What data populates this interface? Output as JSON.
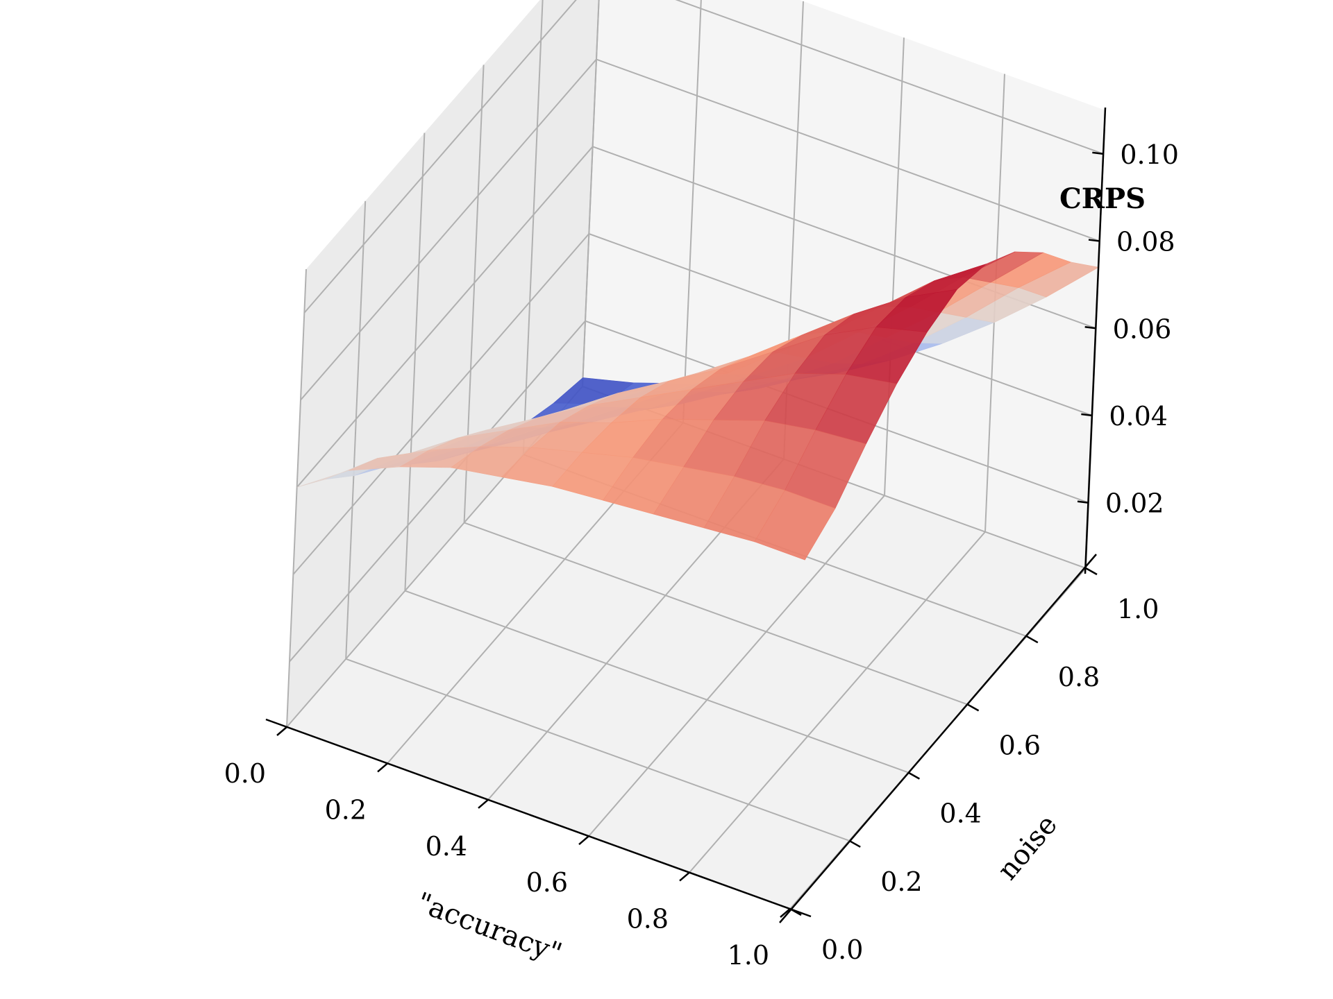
{
  "chart_data": {
    "type": "surface",
    "xlabel": "\"accuracy\"",
    "ylabel": "noise",
    "zlabel": "CRPS",
    "xlim": [
      0,
      1
    ],
    "ylim": [
      0,
      1
    ],
    "zlim": [
      0.005,
      0.11
    ],
    "xticks": [
      "0.0",
      "0.2",
      "0.4",
      "0.6",
      "0.8",
      "1.0"
    ],
    "yticks": [
      "0.0",
      "0.2",
      "0.4",
      "0.6",
      "0.8",
      "1.0"
    ],
    "zticks": [
      "0.02",
      "0.04",
      "0.06",
      "0.08",
      "0.10"
    ],
    "colormap": "coolwarm",
    "grid": true,
    "x": [
      0.0,
      0.1,
      0.2,
      0.3,
      0.4,
      0.5,
      0.6,
      0.7,
      0.8,
      0.9,
      1.0
    ],
    "y": [
      0.0,
      0.1,
      0.2,
      0.3,
      0.4,
      0.5,
      0.6,
      0.7,
      0.8,
      0.9,
      1.0
    ],
    "z": [
      [
        0.06,
        0.068,
        0.073,
        0.077,
        0.079,
        0.081,
        0.082,
        0.083,
        0.084,
        0.085,
        0.085
      ],
      [
        0.054,
        0.063,
        0.069,
        0.074,
        0.078,
        0.081,
        0.084,
        0.086,
        0.088,
        0.089,
        0.089
      ],
      [
        0.047,
        0.056,
        0.064,
        0.07,
        0.076,
        0.08,
        0.085,
        0.089,
        0.093,
        0.095,
        0.096
      ],
      [
        0.041,
        0.049,
        0.058,
        0.065,
        0.072,
        0.078,
        0.084,
        0.09,
        0.096,
        0.1,
        0.102
      ],
      [
        0.034,
        0.042,
        0.051,
        0.059,
        0.067,
        0.074,
        0.081,
        0.089,
        0.097,
        0.103,
        0.106
      ],
      [
        0.027,
        0.035,
        0.043,
        0.052,
        0.06,
        0.068,
        0.076,
        0.085,
        0.094,
        0.102,
        0.108
      ],
      [
        0.021,
        0.028,
        0.036,
        0.044,
        0.052,
        0.06,
        0.069,
        0.078,
        0.088,
        0.098,
        0.106
      ],
      [
        0.016,
        0.022,
        0.029,
        0.036,
        0.044,
        0.052,
        0.06,
        0.07,
        0.08,
        0.091,
        0.101
      ],
      [
        0.012,
        0.017,
        0.023,
        0.029,
        0.036,
        0.043,
        0.051,
        0.061,
        0.071,
        0.082,
        0.093
      ],
      [
        0.009,
        0.013,
        0.018,
        0.023,
        0.029,
        0.036,
        0.043,
        0.052,
        0.062,
        0.073,
        0.083
      ],
      [
        0.007,
        0.01,
        0.014,
        0.018,
        0.023,
        0.029,
        0.036,
        0.044,
        0.053,
        0.063,
        0.074
      ]
    ]
  }
}
